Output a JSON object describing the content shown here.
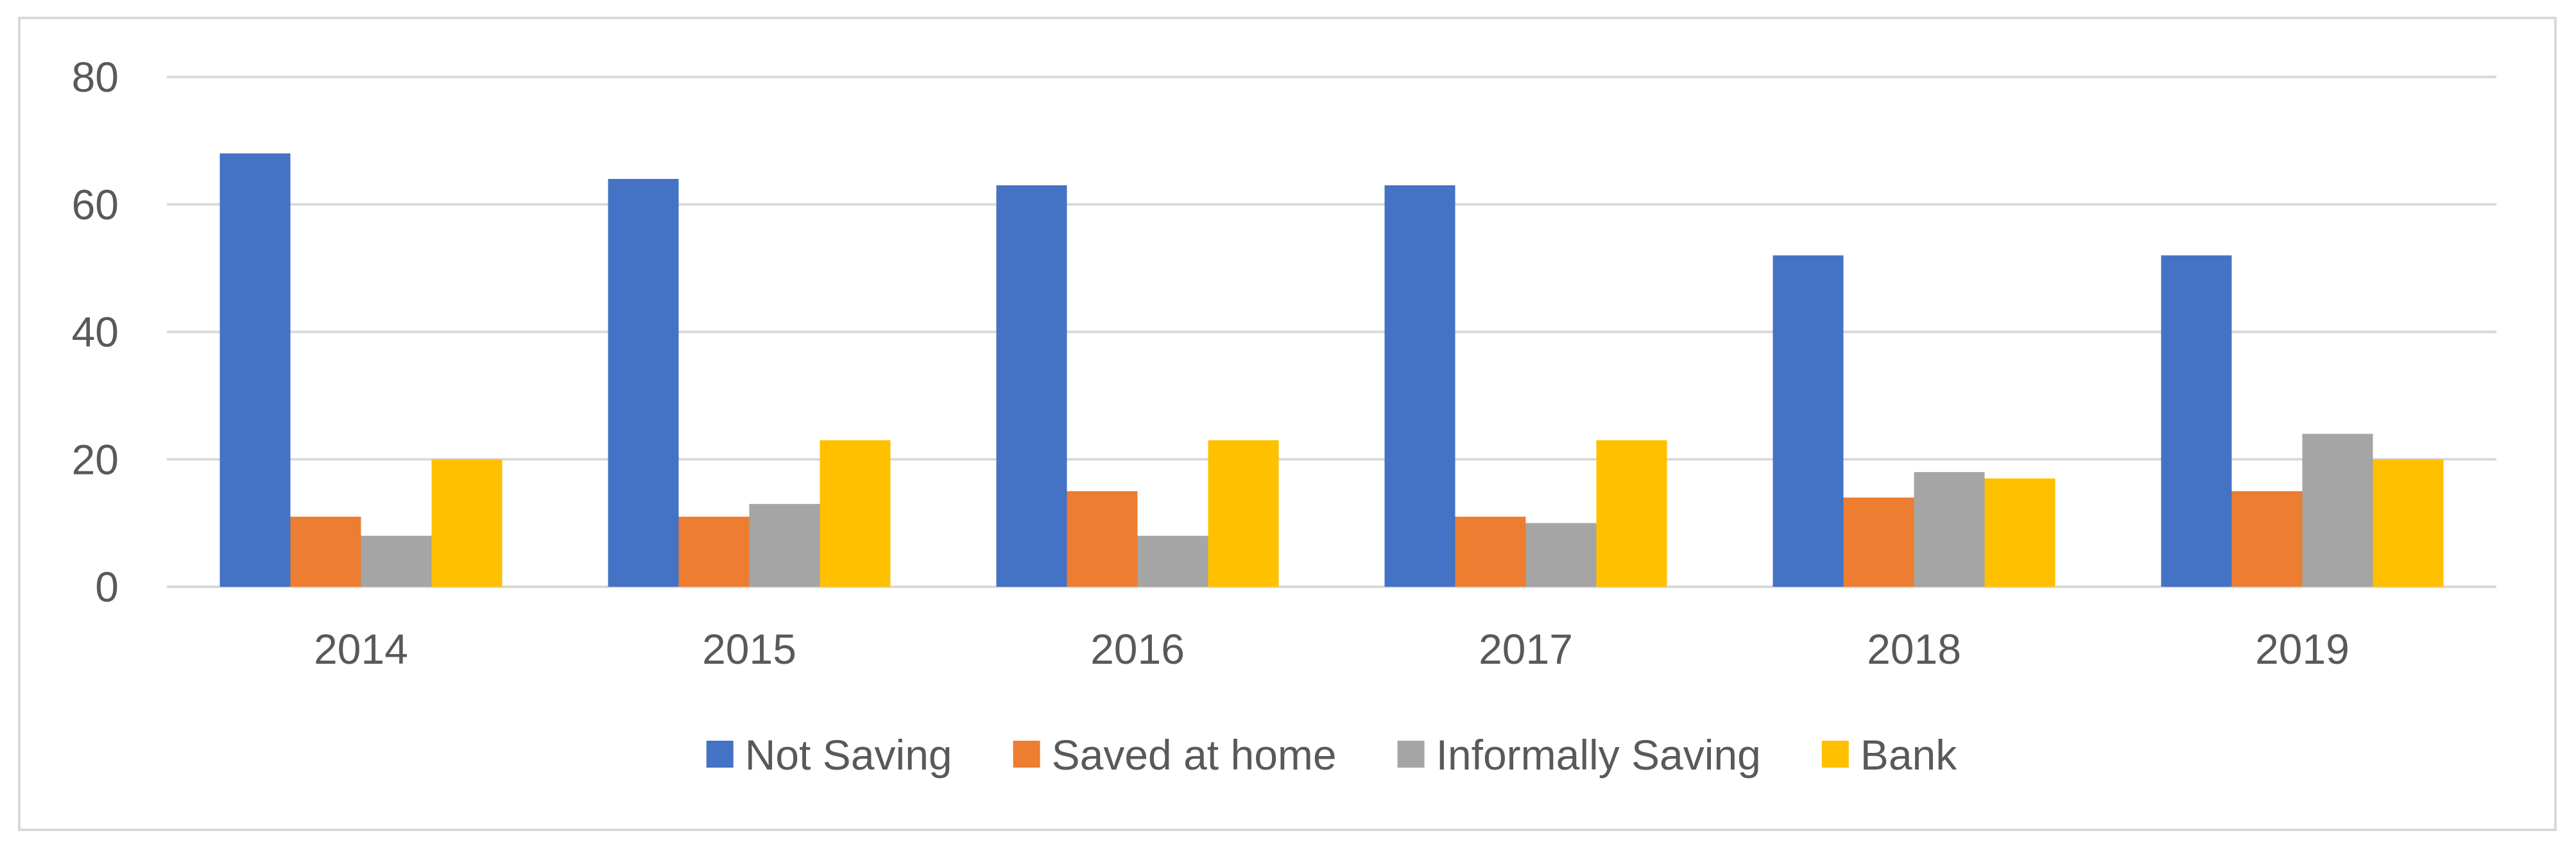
{
  "chart_data": {
    "type": "bar",
    "title": "",
    "xlabel": "",
    "ylabel": "",
    "categories": [
      "2014",
      "2015",
      "2016",
      "2017",
      "2018",
      "2019"
    ],
    "series": [
      {
        "name": "Not Saving",
        "color": "#4472C4",
        "values": [
          68,
          64,
          63,
          63,
          52,
          52
        ]
      },
      {
        "name": "Saved at home",
        "color": "#ED7D31",
        "values": [
          11,
          11,
          15,
          11,
          14,
          15
        ]
      },
      {
        "name": "Informally Saving",
        "color": "#A5A5A5",
        "values": [
          8,
          13,
          8,
          10,
          18,
          24
        ]
      },
      {
        "name": "Bank",
        "color": "#FFC000",
        "values": [
          20,
          23,
          23,
          23,
          17,
          20
        ]
      }
    ],
    "ylim": [
      0,
      80
    ],
    "yticks": [
      0,
      20,
      40,
      60,
      80
    ],
    "grid": true,
    "legend_position": "bottom"
  }
}
